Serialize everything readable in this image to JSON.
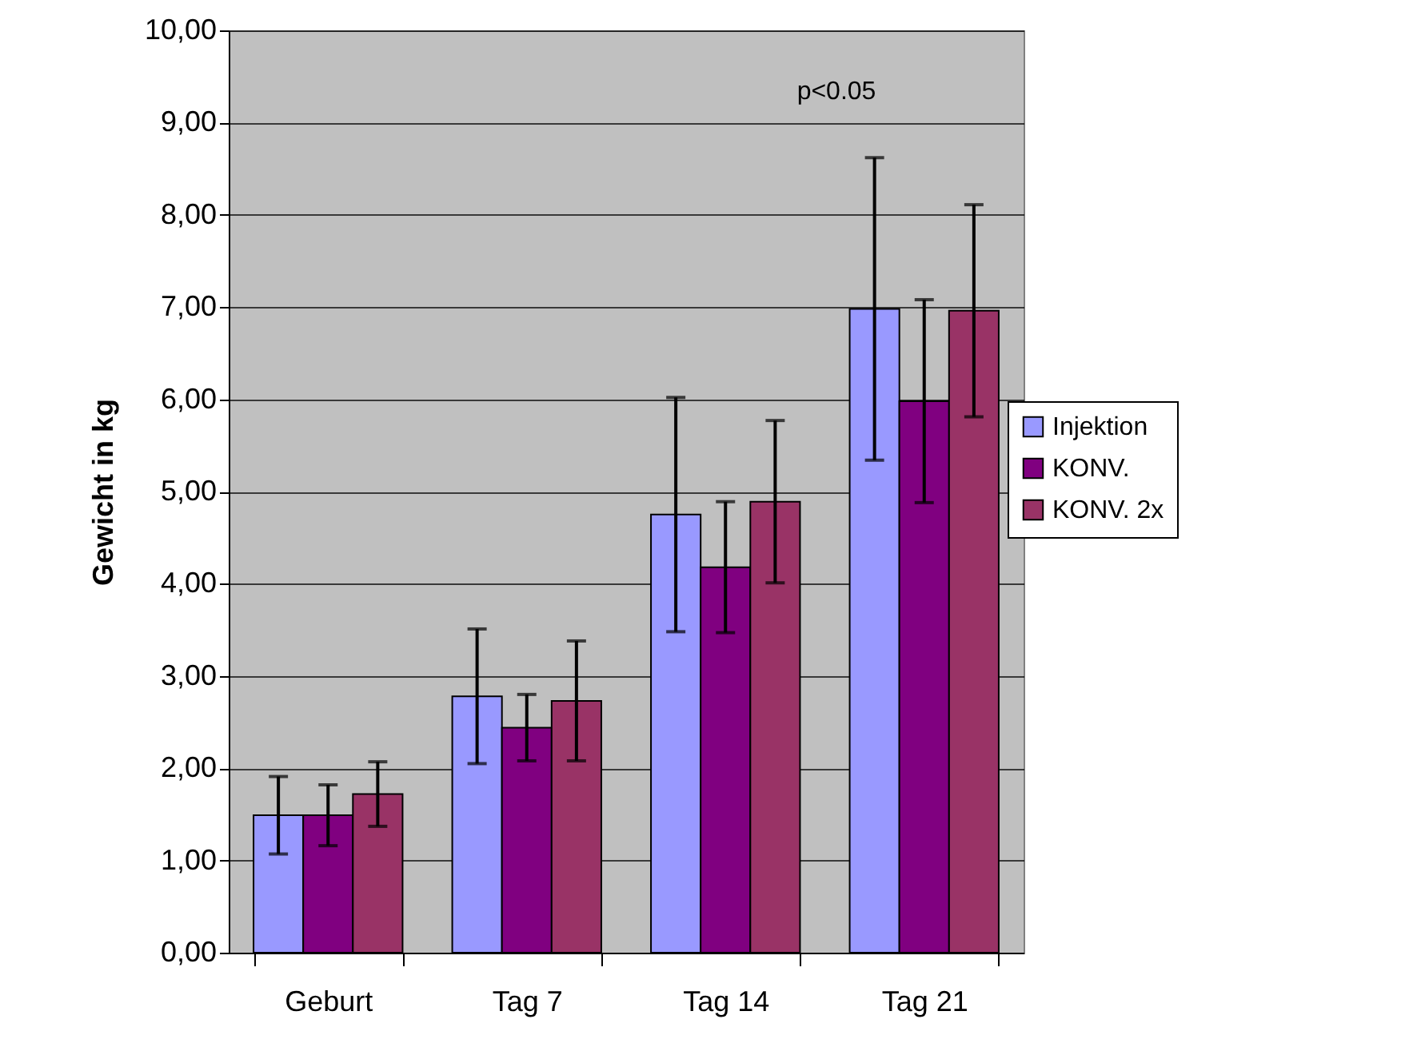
{
  "chart_data": {
    "type": "bar",
    "ylabel": "Gewicht in kg",
    "categories": [
      "Geburt",
      "Tag 7",
      "Tag 14",
      "Tag 21"
    ],
    "series": [
      {
        "name": "Injektion",
        "color": "#9999ff",
        "values": [
          1.49,
          2.78,
          4.75,
          6.98
        ],
        "errors": [
          0.42,
          0.73,
          1.27,
          1.64
        ]
      },
      {
        "name": "KONV.",
        "color": "#800080",
        "values": [
          1.49,
          2.44,
          4.18,
          5.98
        ],
        "errors": [
          0.33,
          0.36,
          0.71,
          1.1
        ]
      },
      {
        "name": "KONV. 2x",
        "color": "#993366",
        "values": [
          1.72,
          2.73,
          4.89,
          6.96
        ],
        "errors": [
          0.35,
          0.65,
          0.88,
          1.15
        ]
      }
    ],
    "ylim": [
      0,
      10
    ],
    "yticks": [
      {
        "value": 0,
        "label": "0,00"
      },
      {
        "value": 1,
        "label": "1,00"
      },
      {
        "value": 2,
        "label": "2,00"
      },
      {
        "value": 3,
        "label": "3,00"
      },
      {
        "value": 4,
        "label": "4,00"
      },
      {
        "value": 5,
        "label": "5,00"
      },
      {
        "value": 6,
        "label": "6,00"
      },
      {
        "value": 7,
        "label": "7,00"
      },
      {
        "value": 8,
        "label": "8,00"
      },
      {
        "value": 9,
        "label": "9,00"
      },
      {
        "value": 10,
        "label": "10,00"
      }
    ],
    "grid": "y",
    "legend": "right",
    "annotations": [
      "p<0.05"
    ]
  }
}
